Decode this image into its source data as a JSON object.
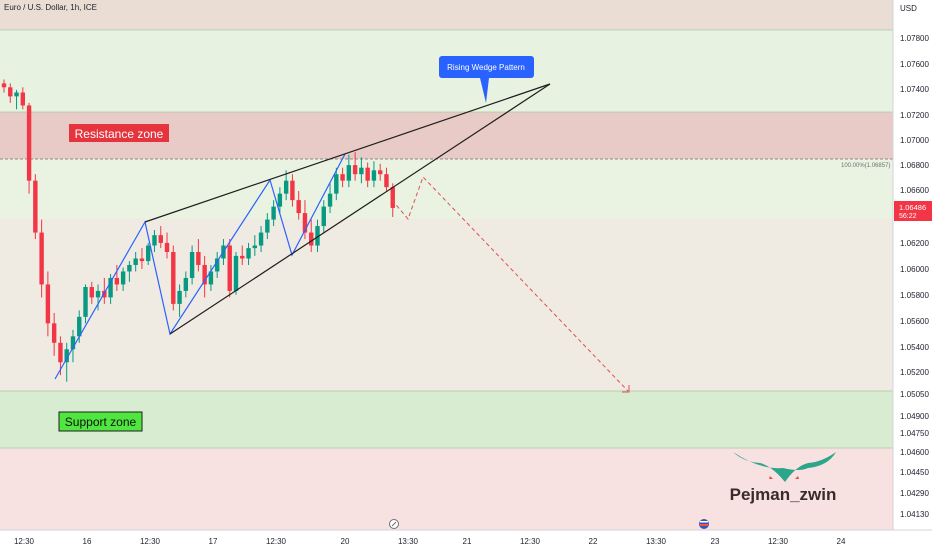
{
  "header": {
    "title": "Euro / U.S. Dollar, 1h, ICE",
    "currency": "USD"
  },
  "chart_data": {
    "type": "candlestick",
    "title": "Euro / U.S. Dollar, 1h, ICE",
    "y_ticks": [
      "1.07800",
      "1.07600",
      "1.07400",
      "1.07200",
      "1.07000",
      "1.06800",
      "1.06600",
      "1.06200",
      "1.06000",
      "1.05800",
      "1.05600",
      "1.05400",
      "1.05200",
      "1.05050",
      "1.04900",
      "1.04750",
      "1.04600",
      "1.04450",
      "1.04290",
      "1.04130"
    ],
    "x_ticks": [
      "12:30",
      "16",
      "12:30",
      "17",
      "12:30",
      "20",
      "13:30",
      "21",
      "12:30",
      "22",
      "13:30",
      "23",
      "12:30",
      "24"
    ],
    "last_price": "1.06486",
    "countdown": "56:22",
    "fib_label": "100.00%(1.06857)",
    "annotations": {
      "pattern": "Rising Wedge Pattern",
      "resistance": "Resistance zone",
      "support": "Support zone",
      "watermark": "Pejman_zwin"
    },
    "candles": [
      [
        1.0745,
        1.0748,
        1.0738,
        1.0742
      ],
      [
        1.0742,
        1.0745,
        1.073,
        1.0735
      ],
      [
        1.0735,
        1.074,
        1.0725,
        1.0738
      ],
      [
        1.0738,
        1.0742,
        1.0725,
        1.0728
      ],
      [
        1.0728,
        1.073,
        1.066,
        1.067
      ],
      [
        1.067,
        1.0675,
        1.0625,
        1.063
      ],
      [
        1.063,
        1.064,
        1.058,
        1.059
      ],
      [
        1.059,
        1.06,
        1.055,
        1.056
      ],
      [
        1.056,
        1.0568,
        1.0535,
        1.0545
      ],
      [
        1.0545,
        1.055,
        1.052,
        1.053
      ],
      [
        1.053,
        1.0545,
        1.0515,
        1.054
      ],
      [
        1.054,
        1.0555,
        1.053,
        1.055
      ],
      [
        1.055,
        1.057,
        1.0545,
        1.0565
      ],
      [
        1.0565,
        1.059,
        1.056,
        1.0588
      ],
      [
        1.0588,
        1.0592,
        1.0575,
        1.058
      ],
      [
        1.058,
        1.059,
        1.057,
        1.0585
      ],
      [
        1.0585,
        1.0595,
        1.0575,
        1.058
      ],
      [
        1.058,
        1.0598,
        1.0575,
        1.0595
      ],
      [
        1.0595,
        1.0605,
        1.0585,
        1.059
      ],
      [
        1.059,
        1.0603,
        1.0585,
        1.06
      ],
      [
        1.06,
        1.0608,
        1.0592,
        1.0605
      ],
      [
        1.0605,
        1.0615,
        1.06,
        1.061
      ],
      [
        1.061,
        1.0618,
        1.0602,
        1.0608
      ],
      [
        1.0608,
        1.0622,
        1.0605,
        1.062
      ],
      [
        1.062,
        1.0632,
        1.0615,
        1.0628
      ],
      [
        1.0628,
        1.0635,
        1.0618,
        1.0622
      ],
      [
        1.0622,
        1.063,
        1.061,
        1.0615
      ],
      [
        1.0615,
        1.062,
        1.057,
        1.0575
      ],
      [
        1.0575,
        1.059,
        1.0565,
        1.0585
      ],
      [
        1.0585,
        1.06,
        1.058,
        1.0595
      ],
      [
        1.0595,
        1.062,
        1.059,
        1.0615
      ],
      [
        1.0615,
        1.0625,
        1.06,
        1.0605
      ],
      [
        1.0605,
        1.0612,
        1.058,
        1.059
      ],
      [
        1.059,
        1.0605,
        1.0585,
        1.06
      ],
      [
        1.06,
        1.0615,
        1.0595,
        1.061
      ],
      [
        1.061,
        1.0625,
        1.0605,
        1.062
      ],
      [
        1.062,
        1.0625,
        1.058,
        1.0585
      ],
      [
        1.0585,
        1.0615,
        1.0582,
        1.0612
      ],
      [
        1.0612,
        1.062,
        1.0605,
        1.061
      ],
      [
        1.061,
        1.0622,
        1.0605,
        1.0618
      ],
      [
        1.0618,
        1.0628,
        1.0612,
        1.062
      ],
      [
        1.062,
        1.0635,
        1.0615,
        1.063
      ],
      [
        1.063,
        1.0645,
        1.0625,
        1.064
      ],
      [
        1.064,
        1.0655,
        1.0635,
        1.065
      ],
      [
        1.065,
        1.0665,
        1.0645,
        1.066
      ],
      [
        1.066,
        1.0678,
        1.0655,
        1.067
      ],
      [
        1.067,
        1.0675,
        1.065,
        1.0655
      ],
      [
        1.0655,
        1.0662,
        1.064,
        1.0645
      ],
      [
        1.0645,
        1.0655,
        1.0625,
        1.063
      ],
      [
        1.063,
        1.064,
        1.0615,
        1.062
      ],
      [
        1.062,
        1.064,
        1.0615,
        1.0635
      ],
      [
        1.0635,
        1.0655,
        1.063,
        1.065
      ],
      [
        1.065,
        1.0668,
        1.0645,
        1.066
      ],
      [
        1.066,
        1.068,
        1.0655,
        1.0675
      ],
      [
        1.0675,
        1.068,
        1.0665,
        1.067
      ],
      [
        1.067,
        1.069,
        1.0665,
        1.0682
      ],
      [
        1.0682,
        1.0692,
        1.067,
        1.0675
      ],
      [
        1.0675,
        1.0688,
        1.0668,
        1.068
      ],
      [
        1.068,
        1.0684,
        1.0665,
        1.067
      ],
      [
        1.067,
        1.0685,
        1.0665,
        1.0678
      ],
      [
        1.0678,
        1.0683,
        1.067,
        1.0675
      ],
      [
        1.0675,
        1.068,
        1.0662,
        1.0665
      ],
      [
        1.0665,
        1.0668,
        1.0642,
        1.0649
      ]
    ]
  },
  "colors": {
    "up": "#089981",
    "down": "#f23645",
    "resistance": "#e8c9c6",
    "support": "#cbe8c4",
    "channel": "#2962ff",
    "wedge": "#1e1e1e",
    "projection": "#e0514e"
  }
}
